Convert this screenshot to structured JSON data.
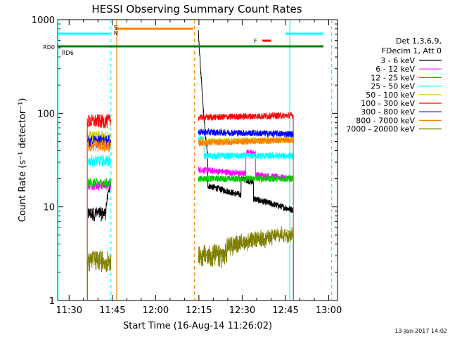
{
  "chart_data": {
    "type": "line",
    "title": "HESSI Observing Summary Count Rates",
    "xlabel": "Start Time (16-Aug-14 11:26:02)",
    "ylabel": "Count Rate (s⁻¹ detector⁻¹)",
    "yscale": "log",
    "ylim": [
      1,
      1000
    ],
    "xlim_minutes": [
      0,
      37.6
    ],
    "x_ticks": [
      {
        "t": 3.97,
        "label": "11:30"
      },
      {
        "t": 18.97,
        "label": "11:45"
      },
      {
        "t": 33.97,
        "label": "12:00"
      },
      {
        "t": 48.97,
        "label": "12:15"
      },
      {
        "t": 63.97,
        "label": "12:30"
      },
      {
        "t": 78.97,
        "label": "12:45"
      },
      {
        "t": 93.97,
        "label": "13:00"
      }
    ],
    "y_ticks": [
      {
        "v": 1,
        "label": "1"
      },
      {
        "v": 10,
        "label": "10"
      },
      {
        "v": 100,
        "label": "100"
      },
      {
        "v": 1000,
        "label": "1000"
      }
    ],
    "legend_header": [
      "Det 1,3,6,9,",
      "FDecim 1, Att 0"
    ],
    "series": [
      {
        "name": "3 - 6 keV",
        "color": "#000000",
        "seg1": 8.5,
        "seg2_start": 60,
        "seg2_end": 10
      },
      {
        "name": "6 - 12 keV",
        "color": "#ff00ff",
        "seg1": 17,
        "seg2_start": 25,
        "seg2_end": 20
      },
      {
        "name": "12 - 25 keV",
        "color": "#00cc00",
        "seg1": 18,
        "seg2_start": 20,
        "seg2_end": 20
      },
      {
        "name": "25 - 50 keV",
        "color": "#00ffff",
        "seg1": 31,
        "seg2_start": 35,
        "seg2_end": 35
      },
      {
        "name": "50 - 100 keV",
        "color": "#cccc00",
        "seg1": 55,
        "seg2_start": 50,
        "seg2_end": 52
      },
      {
        "name": "100 - 300 keV",
        "color": "#ff0000",
        "seg1": 82,
        "seg2_start": 90,
        "seg2_end": 95
      },
      {
        "name": "300 - 800 keV",
        "color": "#0000ff",
        "seg1": 50,
        "seg2_start": 63,
        "seg2_end": 60
      },
      {
        "name": "800 - 7000 keV",
        "color": "#ff8000",
        "seg1": 45,
        "seg2_start": 48,
        "seg2_end": 52
      },
      {
        "name": "7000 - 20000 keV",
        "color": "#808000",
        "seg1": 2.5,
        "seg2_start": 2.5,
        "seg2_end": 4.5
      }
    ],
    "data_segments": [
      {
        "start": "11:36",
        "end": "11:44"
      },
      {
        "start": "12:15",
        "end": "12:48"
      }
    ],
    "flag_bars": [
      {
        "label": "S",
        "color": "#ff8000",
        "start": "11:46",
        "end": "12:13",
        "level": "top"
      },
      {
        "label": "N",
        "color": "#00ffff",
        "start": "11:26",
        "end": "11:44",
        "level": "upper"
      },
      {
        "label": "N",
        "color": "#00ffff",
        "start": "12:45",
        "end": "13:02",
        "level": "upper"
      },
      {
        "label": "RD0",
        "color": "#008000",
        "start": "11:26",
        "end": "13:02",
        "level": "middle"
      },
      {
        "label": "F",
        "color": "#ff0000",
        "start": "12:37",
        "end": "12:40",
        "level": "flare"
      }
    ],
    "flag_labels": {
      "s": "S",
      "n": "N",
      "rd0": "RD0",
      "rd6": "RD6",
      "f": "F"
    },
    "footer_date": "13-Jan-2017 14:02"
  }
}
